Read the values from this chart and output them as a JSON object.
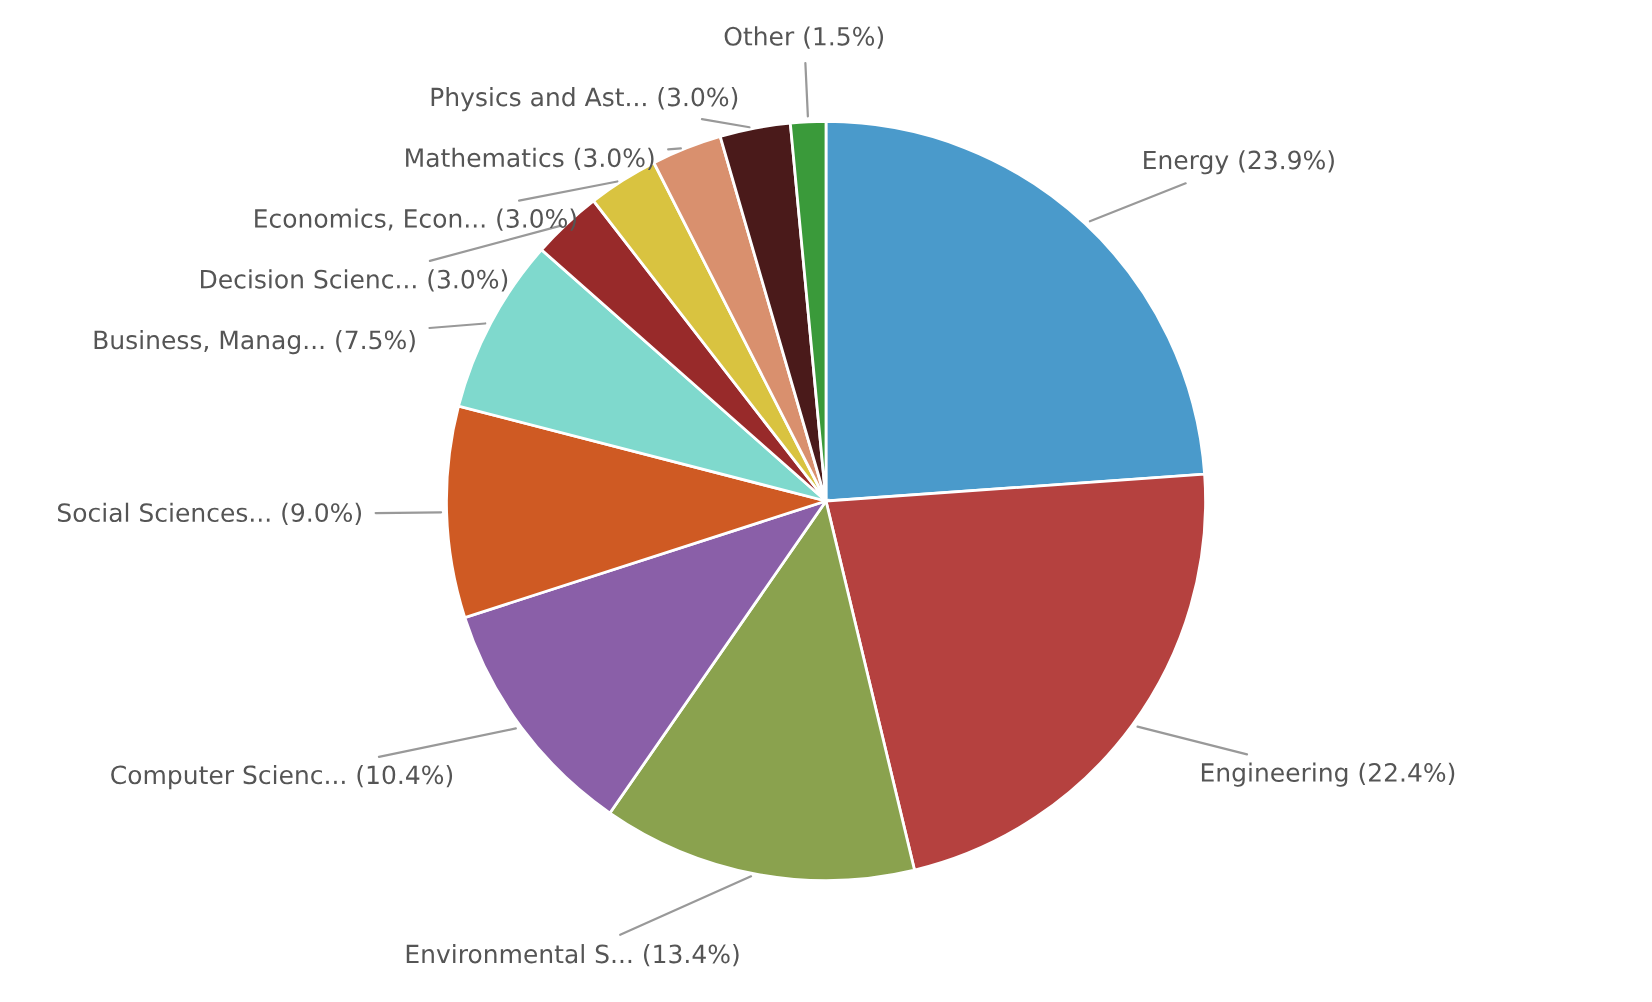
{
  "chart_data": {
    "type": "pie",
    "categories": [
      "Energy",
      "Engineering",
      "Environmental S...",
      "Computer Scienc...",
      "Social Sciences...",
      "Business, Manag...",
      "Decision Scienc...",
      "Economics, Econ...",
      "Mathematics",
      "Physics and Ast...",
      "Other"
    ],
    "values": [
      23.9,
      22.4,
      13.4,
      10.4,
      9.0,
      7.5,
      3.0,
      3.0,
      3.0,
      3.0,
      1.5
    ],
    "value_labels": [
      "(23.9%)",
      "(22.4%)",
      "(13.4%)",
      "(10.4%)",
      "(9.0%)",
      "(7.5%)",
      "(3.0%)",
      "(3.0%)",
      "(3.0%)",
      "(3.0%)",
      "(1.5%)"
    ],
    "colors": [
      "#4a9acb",
      "#b5413f",
      "#8aa24e",
      "#8a5fa8",
      "#cf5a23",
      "#7fd9cd",
      "#982a2a",
      "#d9c340",
      "#d9906e",
      "#4a1a1a",
      "#3a9a3a"
    ]
  }
}
